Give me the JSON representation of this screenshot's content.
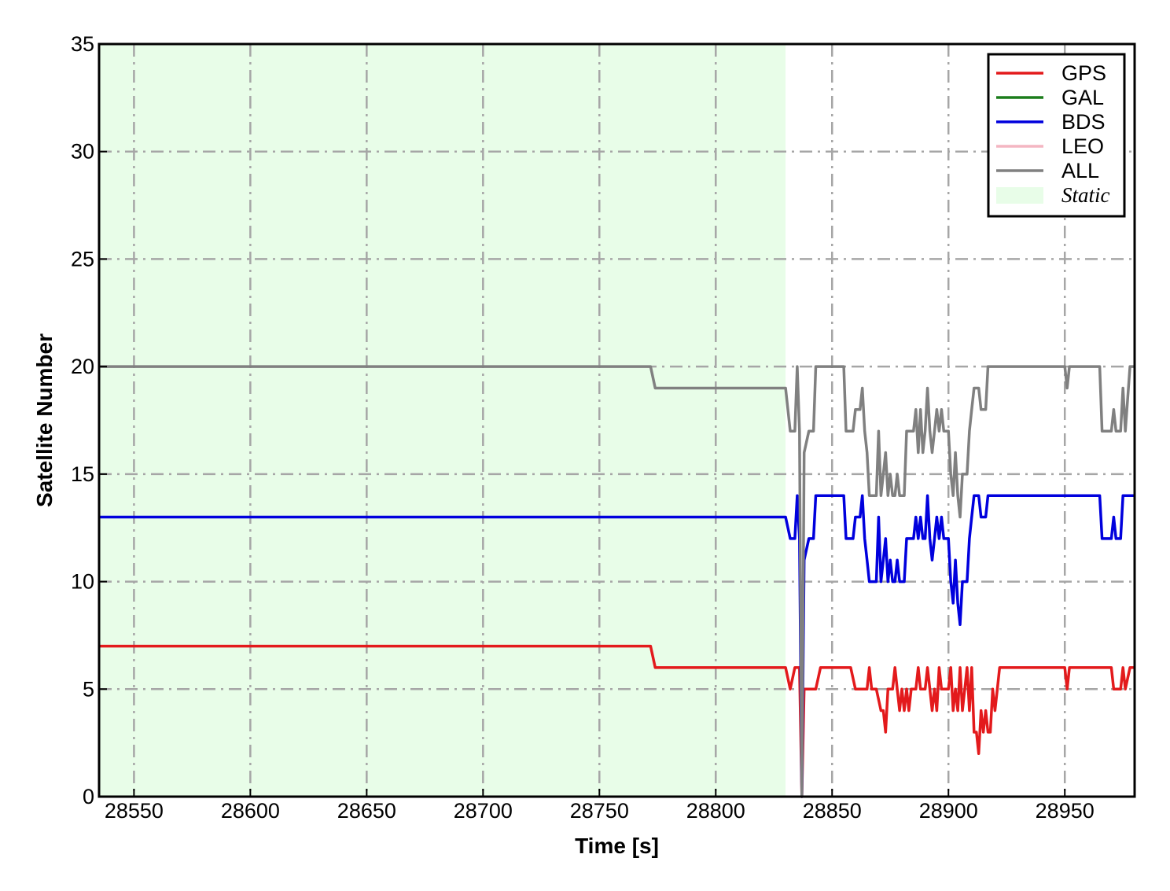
{
  "chart_data": {
    "type": "line",
    "xlabel": "Time [s]",
    "ylabel": "Satellite Number",
    "xlim": [
      28535,
      28980
    ],
    "ylim": [
      0,
      35
    ],
    "xticks": [
      28550,
      28600,
      28650,
      28700,
      28750,
      28800,
      28850,
      28900,
      28950
    ],
    "yticks": [
      0,
      5,
      10,
      15,
      20,
      25,
      30,
      35
    ],
    "grid": true,
    "grid_style": "dash-dot",
    "legend_position": "top-right",
    "static_region": {
      "label": "Static",
      "x_start": 28535,
      "x_end": 28830,
      "color": "#e8fde8"
    },
    "series": [
      {
        "name": "GPS",
        "color": "#e31a1c",
        "points": [
          [
            28535,
            7
          ],
          [
            28772,
            7
          ],
          [
            28774,
            6
          ],
          [
            28830,
            6
          ],
          [
            28832,
            5
          ],
          [
            28834,
            6
          ],
          [
            28836,
            6
          ],
          [
            28837,
            0
          ],
          [
            28838,
            5
          ],
          [
            28843,
            5
          ],
          [
            28845,
            6
          ],
          [
            28852,
            6
          ],
          [
            28858,
            6
          ],
          [
            28860,
            5
          ],
          [
            28865,
            5
          ],
          [
            28866,
            6
          ],
          [
            28867,
            5
          ],
          [
            28869,
            5
          ],
          [
            28871,
            4
          ],
          [
            28872,
            4
          ],
          [
            28873,
            3
          ],
          [
            28874,
            5
          ],
          [
            28876,
            5
          ],
          [
            28877,
            6
          ],
          [
            28878,
            5
          ],
          [
            28879,
            4
          ],
          [
            28880,
            5
          ],
          [
            28881,
            4
          ],
          [
            28882,
            5
          ],
          [
            28883,
            4
          ],
          [
            28884,
            5
          ],
          [
            28886,
            5
          ],
          [
            28887,
            6
          ],
          [
            28888,
            5
          ],
          [
            28890,
            5
          ],
          [
            28891,
            6
          ],
          [
            28892,
            5
          ],
          [
            28893,
            4
          ],
          [
            28894,
            5
          ],
          [
            28895,
            4
          ],
          [
            28896,
            6
          ],
          [
            28897,
            5
          ],
          [
            28900,
            5
          ],
          [
            28901,
            6
          ],
          [
            28902,
            4
          ],
          [
            28903,
            5
          ],
          [
            28904,
            4
          ],
          [
            28905,
            6
          ],
          [
            28906,
            4
          ],
          [
            28907,
            5
          ],
          [
            28908,
            6
          ],
          [
            28909,
            4
          ],
          [
            28910,
            6
          ],
          [
            28911,
            3
          ],
          [
            28912,
            3
          ],
          [
            28913,
            2
          ],
          [
            28914,
            4
          ],
          [
            28915,
            3
          ],
          [
            28916,
            4
          ],
          [
            28917,
            3
          ],
          [
            28918,
            3
          ],
          [
            28919,
            5
          ],
          [
            28920,
            4
          ],
          [
            28921,
            5
          ],
          [
            28922,
            6
          ],
          [
            28950,
            6
          ],
          [
            28951,
            5
          ],
          [
            28952,
            6
          ],
          [
            28970,
            6
          ],
          [
            28971,
            5
          ],
          [
            28972,
            5
          ],
          [
            28974,
            5
          ],
          [
            28975,
            6
          ],
          [
            28976,
            5
          ],
          [
            28978,
            6
          ],
          [
            28980,
            6
          ]
        ]
      },
      {
        "name": "GAL",
        "color": "#1b7d1b",
        "points": []
      },
      {
        "name": "BDS",
        "color": "#0000dd",
        "points": [
          [
            28535,
            13
          ],
          [
            28830,
            13
          ],
          [
            28832,
            12
          ],
          [
            28834,
            12
          ],
          [
            28835,
            14
          ],
          [
            28836,
            12
          ],
          [
            28837,
            0
          ],
          [
            28838,
            11
          ],
          [
            28840,
            12
          ],
          [
            28842,
            12
          ],
          [
            28843,
            14
          ],
          [
            28855,
            14
          ],
          [
            28856,
            12
          ],
          [
            28859,
            12
          ],
          [
            28860,
            13
          ],
          [
            28862,
            13
          ],
          [
            28863,
            14
          ],
          [
            28864,
            12
          ],
          [
            28865,
            11
          ],
          [
            28866,
            10
          ],
          [
            28869,
            10
          ],
          [
            28870,
            13
          ],
          [
            28871,
            10
          ],
          [
            28872,
            11
          ],
          [
            28873,
            12
          ],
          [
            28874,
            10
          ],
          [
            28875,
            11
          ],
          [
            28876,
            10
          ],
          [
            28877,
            10
          ],
          [
            28878,
            11
          ],
          [
            28879,
            10
          ],
          [
            28881,
            10
          ],
          [
            28882,
            12
          ],
          [
            28884,
            12
          ],
          [
            28885,
            12
          ],
          [
            28886,
            13
          ],
          [
            28887,
            12
          ],
          [
            28888,
            13
          ],
          [
            28889,
            12
          ],
          [
            28890,
            12
          ],
          [
            28891,
            14
          ],
          [
            28892,
            12
          ],
          [
            28893,
            11
          ],
          [
            28894,
            12
          ],
          [
            28895,
            13
          ],
          [
            28896,
            12
          ],
          [
            28897,
            13
          ],
          [
            28898,
            12
          ],
          [
            28900,
            12
          ],
          [
            28901,
            10
          ],
          [
            28902,
            9
          ],
          [
            28903,
            11
          ],
          [
            28904,
            9
          ],
          [
            28905,
            8
          ],
          [
            28906,
            10
          ],
          [
            28908,
            10
          ],
          [
            28909,
            12
          ],
          [
            28910,
            13
          ],
          [
            28911,
            14
          ],
          [
            28913,
            14
          ],
          [
            28914,
            13
          ],
          [
            28916,
            13
          ],
          [
            28917,
            14
          ],
          [
            28930,
            14
          ],
          [
            28940,
            14
          ],
          [
            28950,
            14
          ],
          [
            28960,
            14
          ],
          [
            28962,
            14
          ],
          [
            28965,
            14
          ],
          [
            28966,
            12
          ],
          [
            28970,
            12
          ],
          [
            28971,
            13
          ],
          [
            28972,
            12
          ],
          [
            28974,
            12
          ],
          [
            28975,
            14
          ],
          [
            28980,
            14
          ]
        ]
      },
      {
        "name": "LEO",
        "color": "#f4b6c2",
        "points": []
      },
      {
        "name": "ALL",
        "color": "#808080",
        "points": [
          [
            28535,
            20
          ],
          [
            28772,
            20
          ],
          [
            28774,
            19
          ],
          [
            28830,
            19
          ],
          [
            28832,
            17
          ],
          [
            28834,
            17
          ],
          [
            28835,
            20
          ],
          [
            28836,
            17
          ],
          [
            28837,
            0
          ],
          [
            28838,
            16
          ],
          [
            28840,
            17
          ],
          [
            28842,
            17
          ],
          [
            28843,
            20
          ],
          [
            28855,
            20
          ],
          [
            28856,
            17
          ],
          [
            28859,
            17
          ],
          [
            28860,
            18
          ],
          [
            28862,
            18
          ],
          [
            28863,
            19
          ],
          [
            28864,
            17
          ],
          [
            28865,
            16
          ],
          [
            28866,
            14
          ],
          [
            28869,
            14
          ],
          [
            28870,
            17
          ],
          [
            28871,
            14
          ],
          [
            28872,
            15
          ],
          [
            28873,
            16
          ],
          [
            28874,
            14
          ],
          [
            28875,
            15
          ],
          [
            28876,
            14
          ],
          [
            28877,
            14
          ],
          [
            28878,
            15
          ],
          [
            28879,
            14
          ],
          [
            28881,
            14
          ],
          [
            28882,
            17
          ],
          [
            28884,
            17
          ],
          [
            28885,
            17
          ],
          [
            28886,
            18
          ],
          [
            28887,
            16
          ],
          [
            28888,
            18
          ],
          [
            28889,
            16
          ],
          [
            28890,
            17
          ],
          [
            28891,
            19
          ],
          [
            28892,
            17
          ],
          [
            28893,
            16
          ],
          [
            28894,
            17
          ],
          [
            28895,
            18
          ],
          [
            28896,
            17
          ],
          [
            28897,
            18
          ],
          [
            28898,
            17
          ],
          [
            28900,
            17
          ],
          [
            28901,
            15
          ],
          [
            28902,
            14
          ],
          [
            28903,
            16
          ],
          [
            28904,
            14
          ],
          [
            28905,
            13
          ],
          [
            28906,
            15
          ],
          [
            28908,
            15
          ],
          [
            28909,
            17
          ],
          [
            28910,
            18
          ],
          [
            28911,
            19
          ],
          [
            28913,
            19
          ],
          [
            28914,
            18
          ],
          [
            28916,
            18
          ],
          [
            28917,
            20
          ],
          [
            28930,
            20
          ],
          [
            28940,
            20
          ],
          [
            28950,
            20
          ],
          [
            28951,
            19
          ],
          [
            28952,
            20
          ],
          [
            28965,
            20
          ],
          [
            28966,
            17
          ],
          [
            28970,
            17
          ],
          [
            28971,
            18
          ],
          [
            28972,
            17
          ],
          [
            28974,
            17
          ],
          [
            28975,
            19
          ],
          [
            28976,
            17
          ],
          [
            28978,
            20
          ],
          [
            28980,
            20
          ]
        ]
      }
    ]
  }
}
